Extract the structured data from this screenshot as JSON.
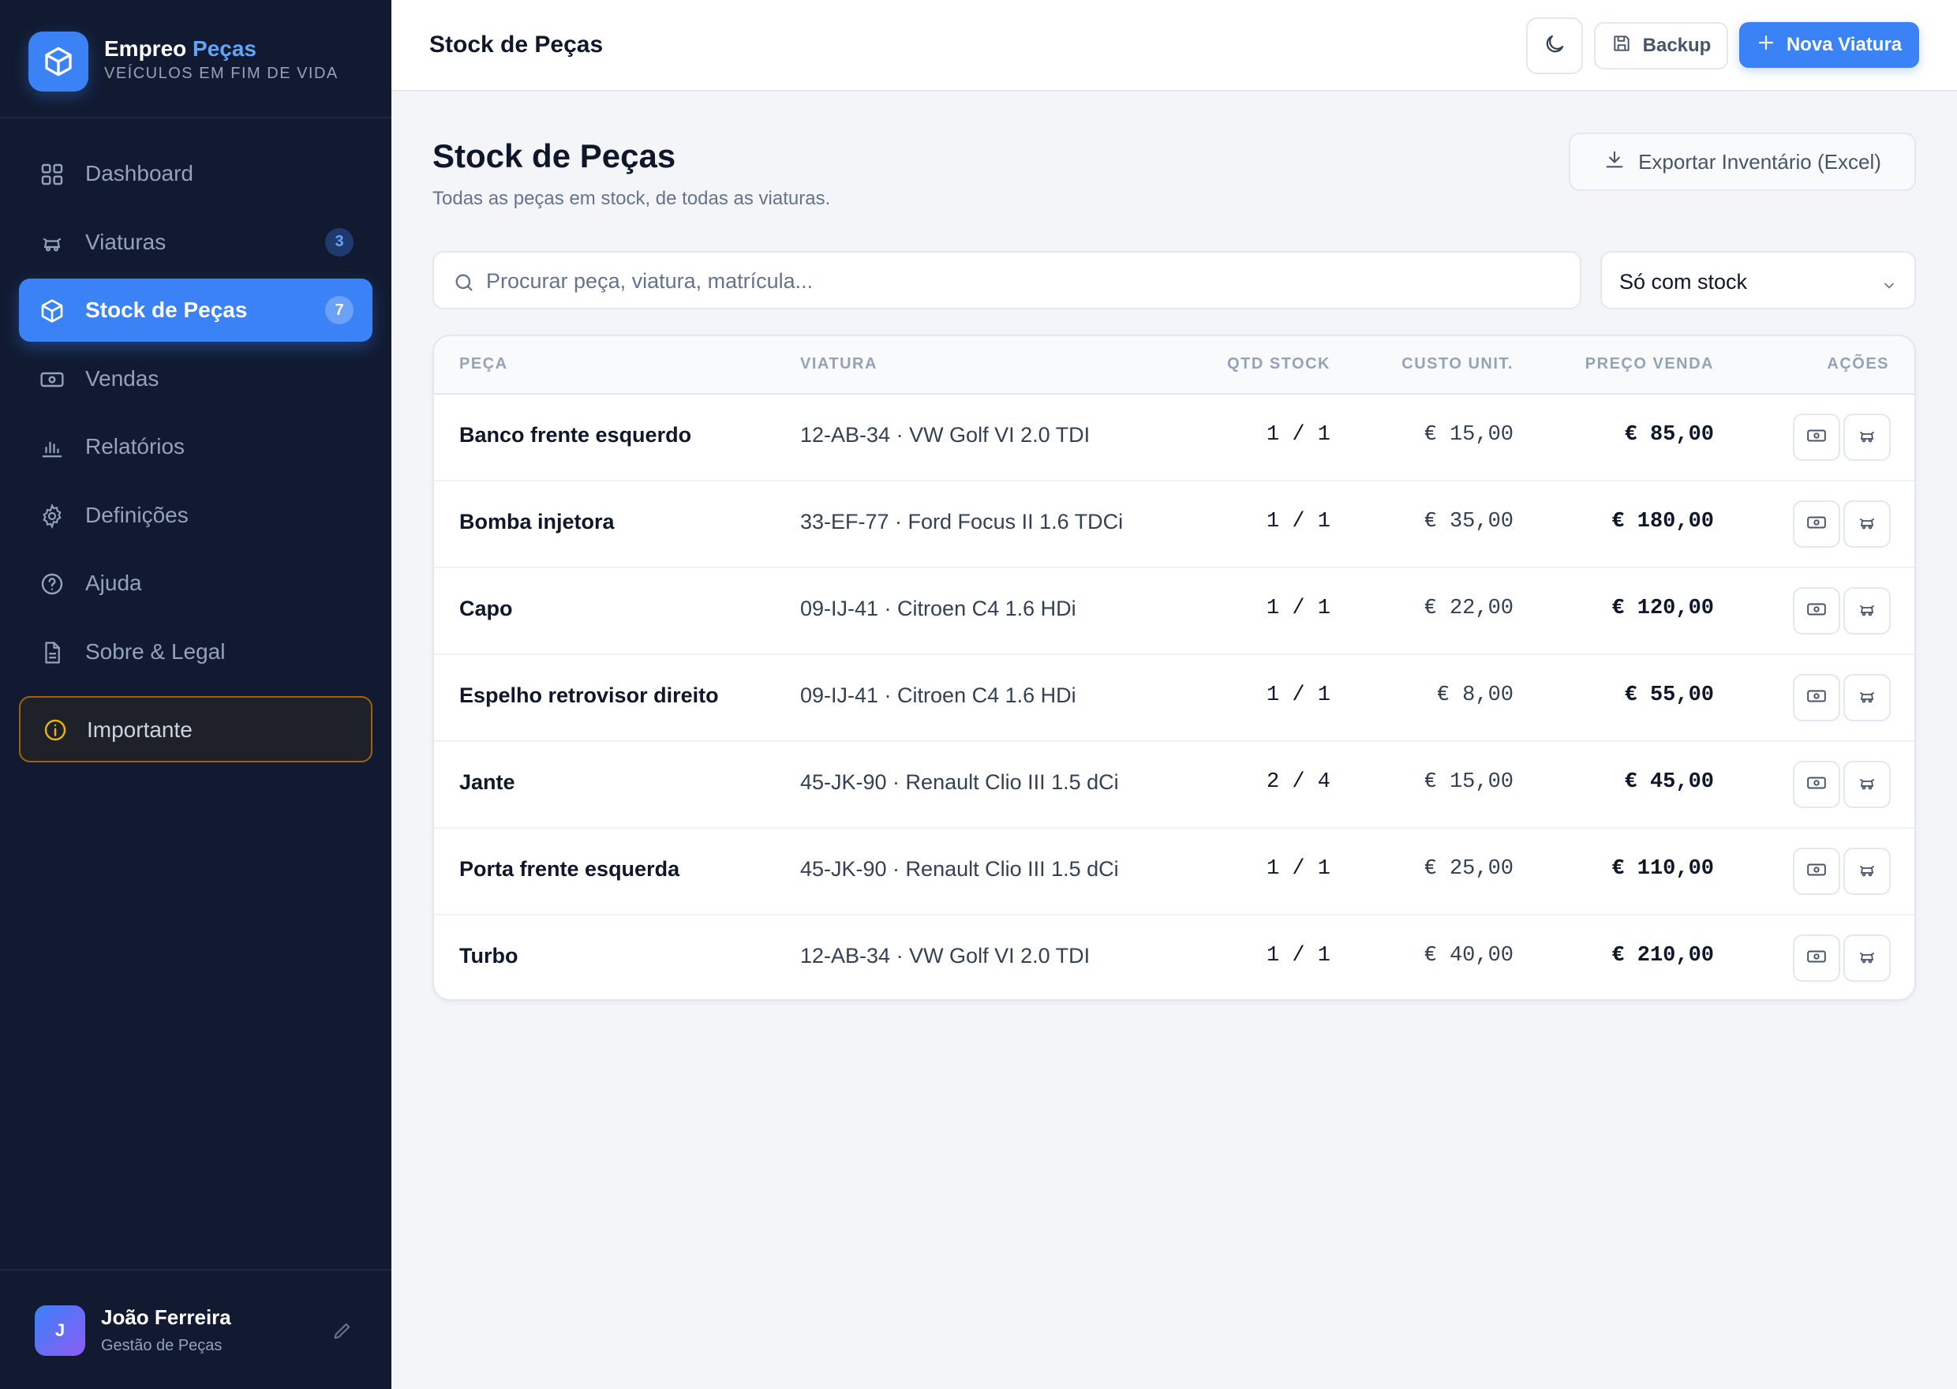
{
  "brand": {
    "name_main": "Empreo",
    "name_accent": "Peças",
    "subtitle": "VEÍCULOS EM FIM DE VIDA"
  },
  "sidebar": {
    "items": [
      {
        "label": "Dashboard",
        "icon": "grid-icon",
        "badge": ""
      },
      {
        "label": "Viaturas",
        "icon": "car-icon",
        "badge": "3"
      },
      {
        "label": "Stock de Peças",
        "icon": "box-icon",
        "badge": "7",
        "active": true
      },
      {
        "label": "Vendas",
        "icon": "cash-icon",
        "badge": ""
      },
      {
        "label": "Relatórios",
        "icon": "bar-chart-icon",
        "badge": ""
      },
      {
        "label": "Definições",
        "icon": "gear-icon",
        "badge": ""
      },
      {
        "label": "Ajuda",
        "icon": "help-icon",
        "badge": ""
      },
      {
        "label": "Sobre & Legal",
        "icon": "document-icon",
        "badge": ""
      }
    ],
    "important_label": "Importante"
  },
  "user": {
    "initial": "J",
    "name": "João Ferreira",
    "role": "Gestão de Peças"
  },
  "topbar": {
    "title": "Stock de Peças",
    "backup_label": "Backup",
    "new_label": "Nova Viatura"
  },
  "main": {
    "title": "Stock de Peças",
    "subtitle": "Todas as peças em stock, de todas as viaturas.",
    "export_label": "Exportar Inventário (Excel)",
    "search_placeholder": "Procurar peça, viatura, matrícula...",
    "filter_value": "Só com stock"
  },
  "table": {
    "columns": [
      "PEÇA",
      "VIATURA",
      "QTD STOCK",
      "CUSTO UNIT.",
      "PREÇO VENDA",
      "AÇÕES"
    ],
    "rows": [
      {
        "part": "Banco frente esquerdo",
        "vehicle": "12-AB-34 · VW Golf VI 2.0 TDI",
        "qty": "1 / 1",
        "cost": "€ 15,00",
        "price": "€ 85,00"
      },
      {
        "part": "Bomba injetora",
        "vehicle": "33-EF-77 · Ford Focus II 1.6 TDCi",
        "qty": "1 / 1",
        "cost": "€ 35,00",
        "price": "€ 180,00"
      },
      {
        "part": "Capo",
        "vehicle": "09-IJ-41 · Citroen C4 1.6 HDi",
        "qty": "1 / 1",
        "cost": "€ 22,00",
        "price": "€ 120,00"
      },
      {
        "part": "Espelho retrovisor direito",
        "vehicle": "09-IJ-41 · Citroen C4 1.6 HDi",
        "qty": "1 / 1",
        "cost": "€ 8,00",
        "price": "€ 55,00"
      },
      {
        "part": "Jante",
        "vehicle": "45-JK-90 · Renault Clio III 1.5 dCi",
        "qty": "2 / 4",
        "cost": "€ 15,00",
        "price": "€ 45,00"
      },
      {
        "part": "Porta frente esquerda",
        "vehicle": "45-JK-90 · Renault Clio III 1.5 dCi",
        "qty": "1 / 1",
        "cost": "€ 25,00",
        "price": "€ 110,00"
      },
      {
        "part": "Turbo",
        "vehicle": "12-AB-34 · VW Golf VI 2.0 TDI",
        "qty": "1 / 1",
        "cost": "€ 40,00",
        "price": "€ 210,00"
      }
    ]
  },
  "colors": {
    "accent": "#3b82f6",
    "sidebar_bg": "#111a30",
    "warning": "#eab308"
  }
}
